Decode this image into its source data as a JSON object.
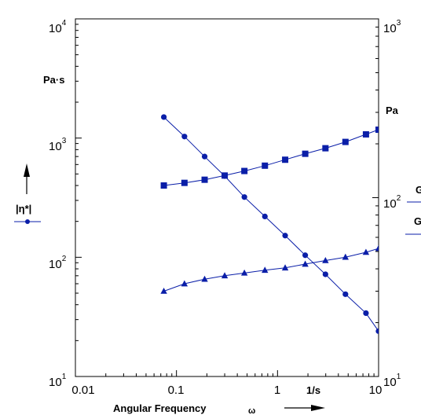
{
  "chart_data": {
    "type": "line",
    "x_axis": {
      "label": "Angular Frequency",
      "symbol": "ω",
      "unit": "1/s",
      "scale": "log",
      "range": [
        0.01,
        10
      ],
      "tick_labels": [
        "0.01",
        "0.1",
        "1",
        "10"
      ]
    },
    "y_left_axis": {
      "unit": "Pa·s",
      "scale": "log",
      "range": [
        10,
        10000
      ],
      "tick_labels": [
        {
          "base": "10",
          "exp": "1"
        },
        {
          "base": "10",
          "exp": "2"
        },
        {
          "base": "10",
          "exp": "3"
        },
        {
          "base": "10",
          "exp": "4"
        }
      ]
    },
    "y_right_axis": {
      "unit": "Pa",
      "scale": "log",
      "range": [
        10,
        1000
      ],
      "tick_labels": [
        {
          "base": "10",
          "exp": "1"
        },
        {
          "base": "10",
          "exp": "2"
        },
        {
          "base": "10",
          "exp": "3"
        }
      ]
    },
    "legend": {
      "placement": "left and right of plot",
      "left_entries": [
        {
          "name": "|η*|",
          "marker": "circle"
        }
      ],
      "right_entries": [
        {
          "name": "G",
          "marker": "square"
        },
        {
          "name": "G",
          "marker": "triangle"
        }
      ]
    },
    "grid": false,
    "color": "#0a1ea8",
    "series": [
      {
        "name": "|η*|",
        "axis": "left",
        "marker": "circle",
        "points": [
          [
            0.075,
            1500
          ],
          [
            0.12,
            1030
          ],
          [
            0.19,
            700
          ],
          [
            0.3,
            480
          ],
          [
            0.47,
            320
          ],
          [
            0.75,
            220
          ],
          [
            1.19,
            152
          ],
          [
            1.88,
            104
          ],
          [
            2.98,
            72
          ],
          [
            4.7,
            49
          ],
          [
            7.5,
            34
          ],
          [
            10,
            24
          ]
        ]
      },
      {
        "name": "G'",
        "axis": "right",
        "marker": "square",
        "points": [
          [
            0.075,
            117
          ],
          [
            0.12,
            121
          ],
          [
            0.19,
            126
          ],
          [
            0.3,
            133
          ],
          [
            0.47,
            141
          ],
          [
            0.75,
            151
          ],
          [
            1.19,
            163
          ],
          [
            1.88,
            176
          ],
          [
            2.98,
            189
          ],
          [
            4.7,
            205
          ],
          [
            7.5,
            226
          ],
          [
            10,
            240
          ]
        ]
      },
      {
        "name": "G''",
        "axis": "right",
        "marker": "triangle",
        "points": [
          [
            0.075,
            30
          ],
          [
            0.12,
            33
          ],
          [
            0.19,
            35
          ],
          [
            0.3,
            36.6
          ],
          [
            0.47,
            37.9
          ],
          [
            0.75,
            39.3
          ],
          [
            1.19,
            40.5
          ],
          [
            1.88,
            42.5
          ],
          [
            2.98,
            44.5
          ],
          [
            4.7,
            46.5
          ],
          [
            7.5,
            49.5
          ],
          [
            10,
            52
          ]
        ]
      }
    ]
  }
}
